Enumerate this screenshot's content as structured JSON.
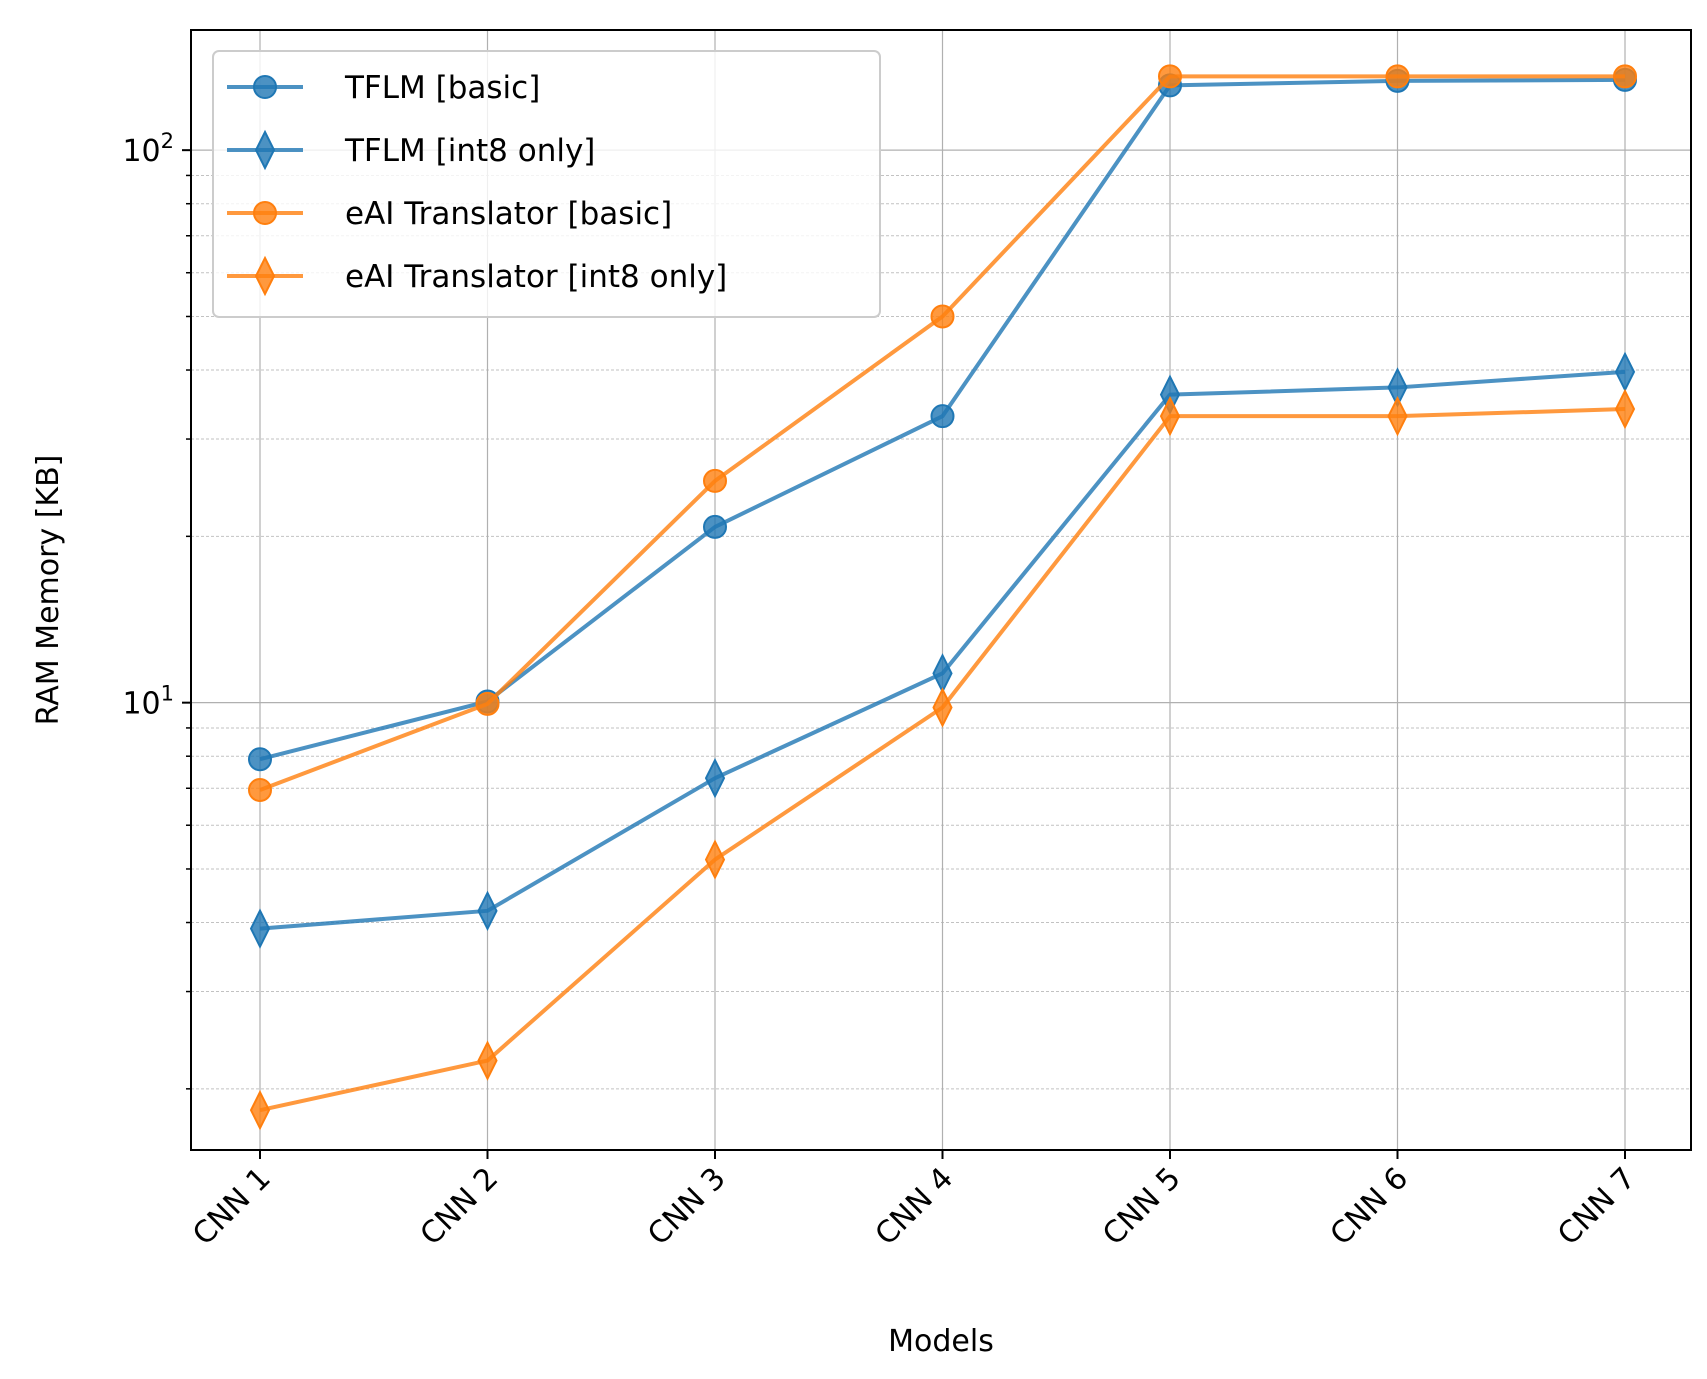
{
  "chart_data": {
    "type": "line",
    "title": "",
    "xlabel": "Models",
    "ylabel": "RAM Memory [KB]",
    "yscale": "log",
    "ylim": [
      1.55,
      165
    ],
    "grid": true,
    "legend_position": "upper-left",
    "categories": [
      "CNN 1",
      "CNN 2",
      "CNN 3",
      "CNN 4",
      "CNN 5",
      "CNN 6",
      "CNN 7"
    ],
    "y_major_ticks": [
      {
        "value": 10,
        "base": "10",
        "exponent": "1"
      },
      {
        "value": 100,
        "base": "10",
        "exponent": "2"
      }
    ],
    "y_minor_ticks": [
      2,
      3,
      4,
      5,
      6,
      7,
      8,
      9,
      20,
      30,
      40,
      50,
      60,
      70,
      80,
      90
    ],
    "series": [
      {
        "name": "TFLM [basic]",
        "color": "#1f77b4",
        "marker": "circle",
        "values": [
          7.9,
          10.05,
          20.8,
          33.0,
          131.0,
          133.5,
          134.0
        ]
      },
      {
        "name": "TFLM [int8 only]",
        "color": "#1f77b4",
        "marker": "thin_diamond",
        "values": [
          3.9,
          4.2,
          7.3,
          11.3,
          36.1,
          37.2,
          39.7
        ]
      },
      {
        "name": "eAI Translator [basic]",
        "color": "#ff7f0e",
        "marker": "circle",
        "values": [
          6.95,
          9.95,
          25.2,
          50.0,
          136.0,
          136.0,
          136.0
        ]
      },
      {
        "name": "eAI Translator [int8 only]",
        "color": "#ff7f0e",
        "marker": "thin_diamond",
        "values": [
          1.83,
          2.25,
          5.2,
          9.8,
          33.0,
          33.0,
          34.0
        ]
      }
    ]
  }
}
